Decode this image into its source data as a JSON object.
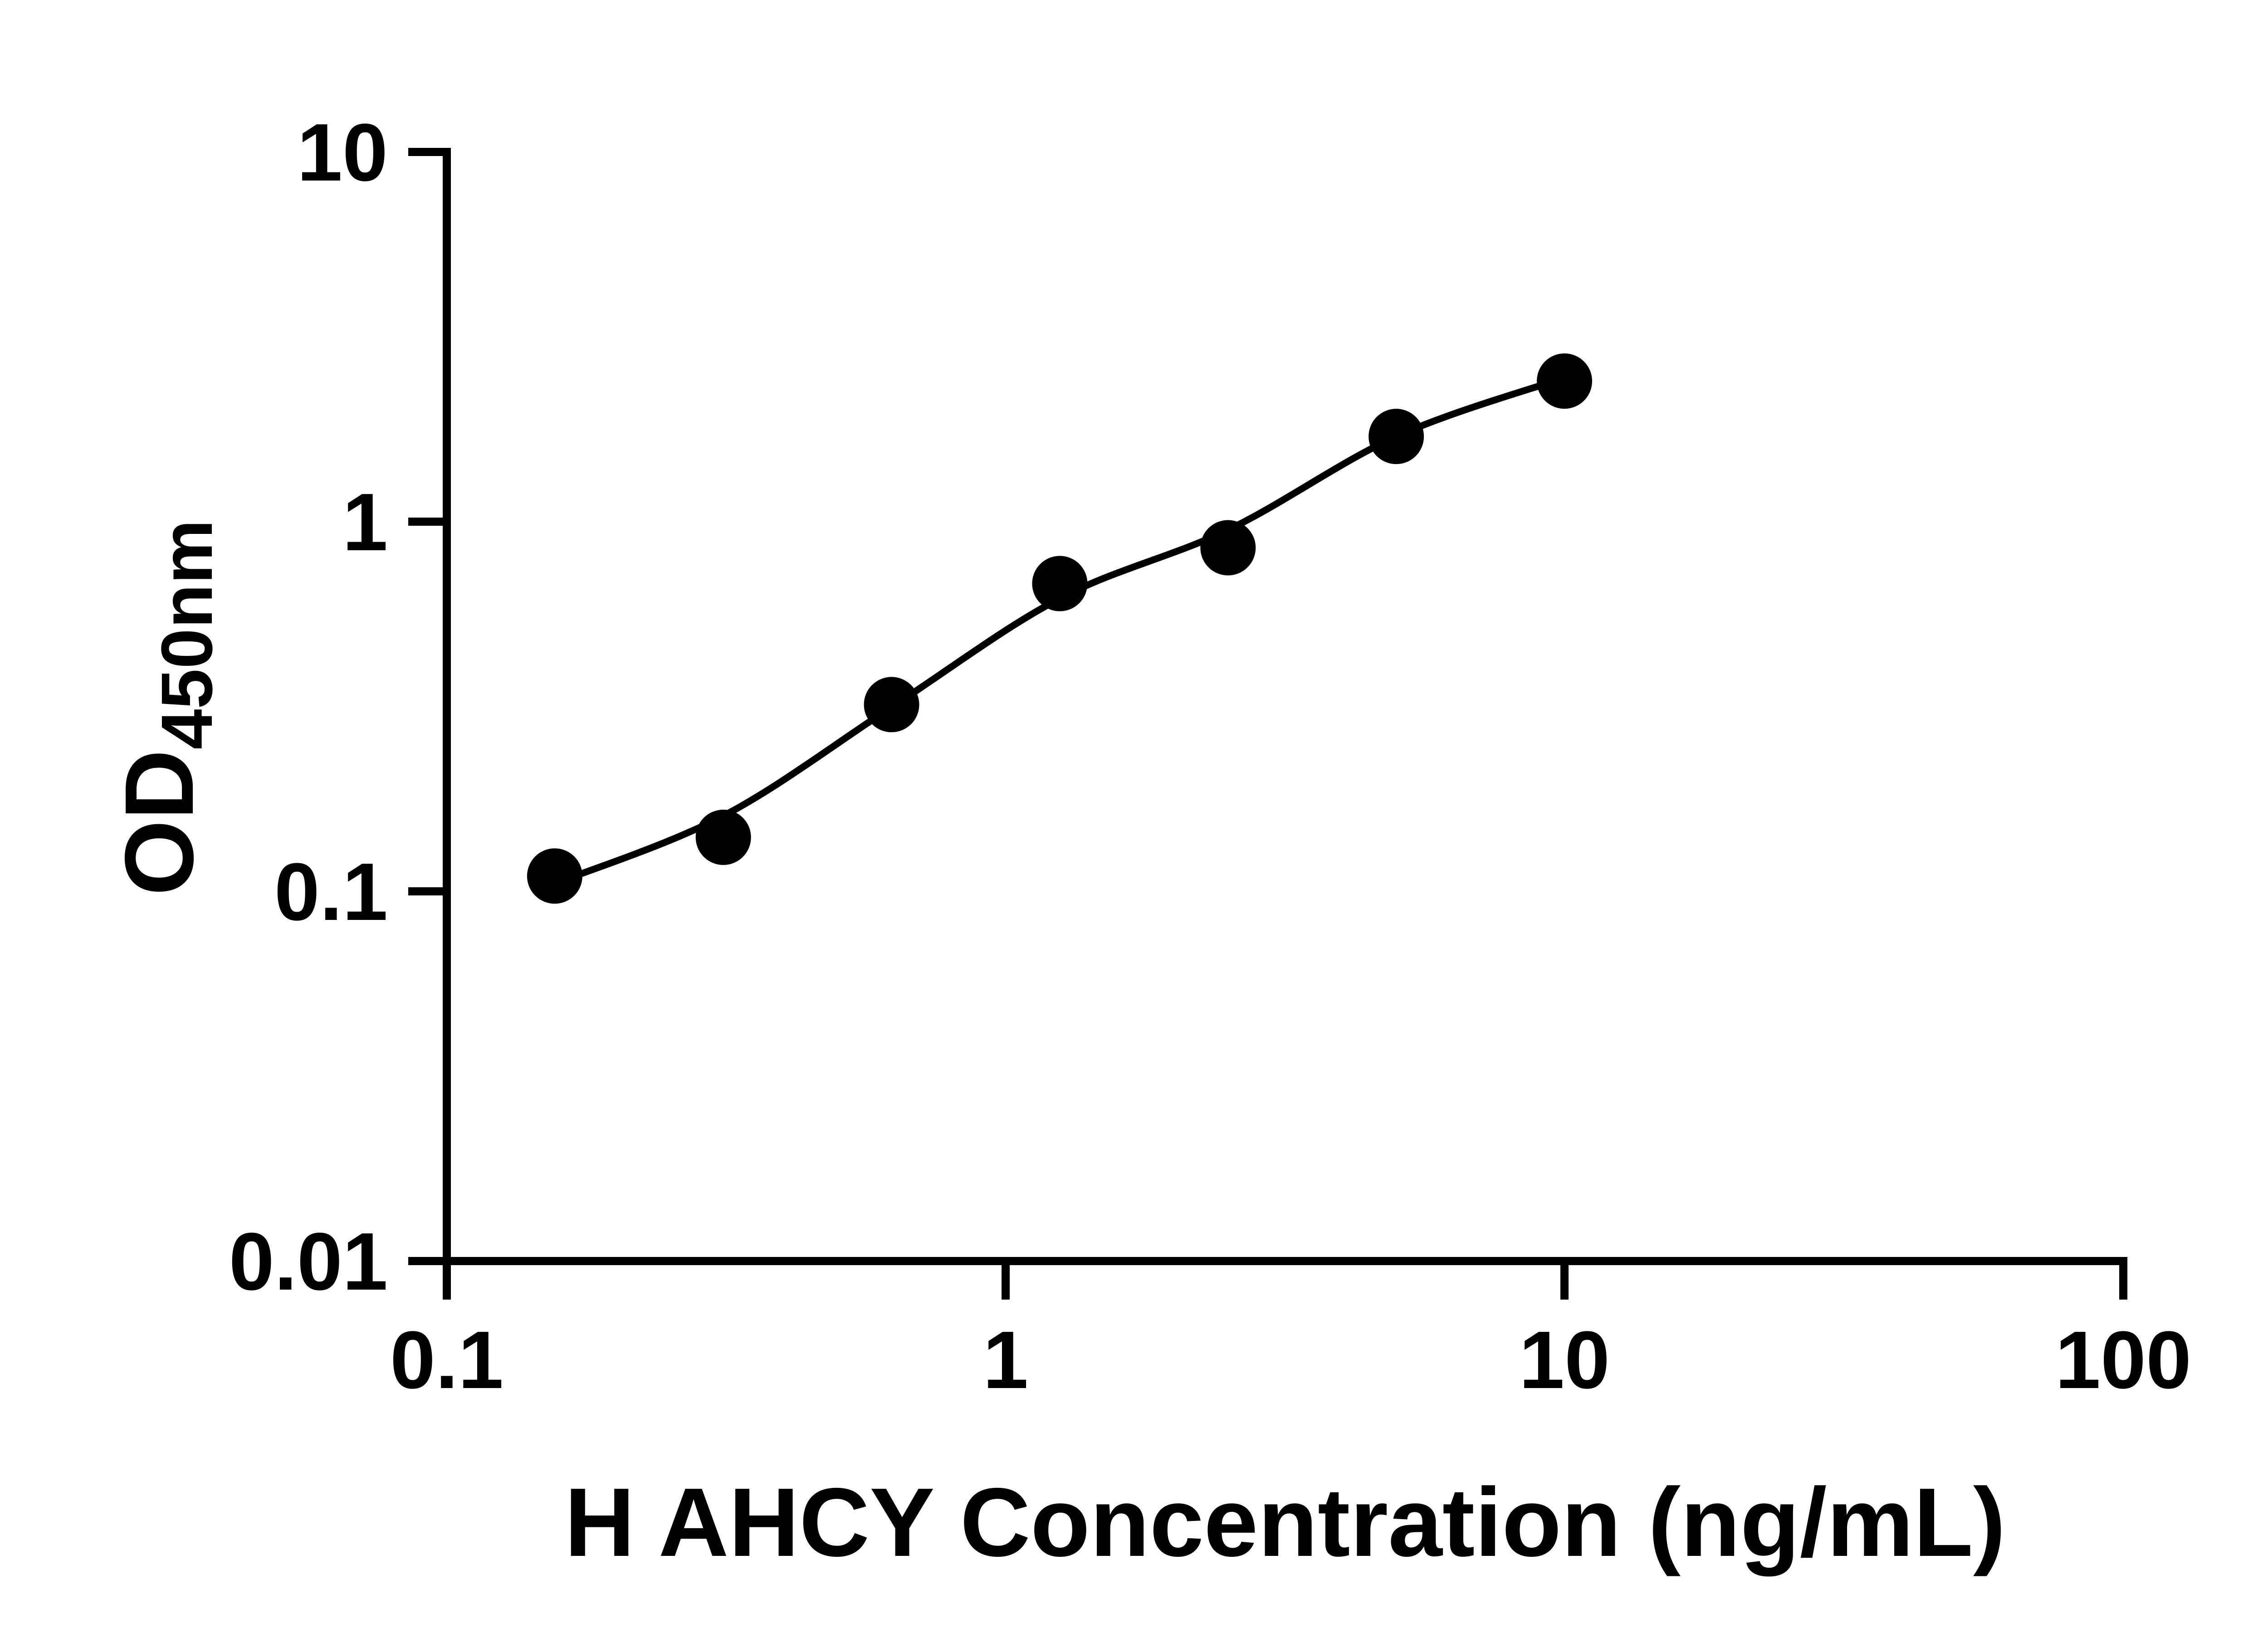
{
  "page": {
    "background": "#ffffff"
  },
  "chart_data": {
    "type": "scatter",
    "title": "",
    "xlabel": "H AHCY Concentration (ng/mL)",
    "ylabel_base": "OD",
    "ylabel_subscript": "450nm",
    "x_scale": "log",
    "y_scale": "log",
    "xlim": [
      0.1,
      100
    ],
    "ylim": [
      0.01,
      10
    ],
    "x_tick_values": [
      0.1,
      1,
      10,
      100
    ],
    "x_tick_labels": [
      "0.1",
      "1",
      "10",
      "100"
    ],
    "y_tick_values": [
      0.01,
      0.1,
      1,
      10
    ],
    "y_tick_labels": [
      "0.01",
      "0.1",
      "1",
      "10"
    ],
    "grid": false,
    "legend": "none",
    "marker": "filled-circle",
    "marker_color": "#000000",
    "curve_color": "#000000",
    "axis_color": "#000000",
    "x": [
      0.156,
      0.3125,
      0.625,
      1.25,
      2.5,
      5,
      10
    ],
    "y": [
      0.11,
      0.14,
      0.32,
      0.68,
      0.85,
      1.7,
      2.4
    ],
    "fit_curve_anchors_x": [
      0.156,
      0.3125,
      0.625,
      1.25,
      2.5,
      5,
      10
    ],
    "fit_curve_anchors_y": [
      0.105,
      0.16,
      0.315,
      0.62,
      0.95,
      1.7,
      2.45
    ]
  }
}
